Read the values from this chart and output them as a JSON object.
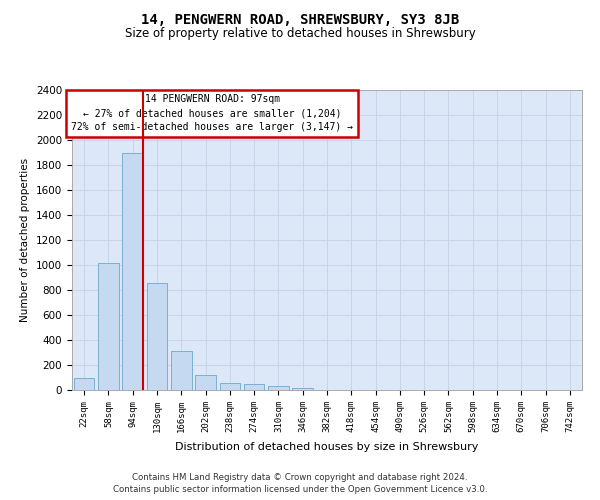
{
  "title": "14, PENGWERN ROAD, SHREWSBURY, SY3 8JB",
  "subtitle": "Size of property relative to detached houses in Shrewsbury",
  "xlabel": "Distribution of detached houses by size in Shrewsbury",
  "ylabel": "Number of detached properties",
  "footer_line1": "Contains HM Land Registry data © Crown copyright and database right 2024.",
  "footer_line2": "Contains public sector information licensed under the Open Government Licence v3.0.",
  "bar_labels": [
    "22sqm",
    "58sqm",
    "94sqm",
    "130sqm",
    "166sqm",
    "202sqm",
    "238sqm",
    "274sqm",
    "310sqm",
    "346sqm",
    "382sqm",
    "418sqm",
    "454sqm",
    "490sqm",
    "526sqm",
    "562sqm",
    "598sqm",
    "634sqm",
    "670sqm",
    "706sqm",
    "742sqm"
  ],
  "bar_values": [
    100,
    1015,
    1900,
    855,
    315,
    120,
    60,
    50,
    30,
    20,
    0,
    0,
    0,
    0,
    0,
    0,
    0,
    0,
    0,
    0,
    0
  ],
  "bar_color": "#c5d9f1",
  "bar_edge_color": "#7bafd4",
  "grid_color": "#c8d4e8",
  "bg_color": "#dce8f8",
  "vline_bar_index": 2,
  "property_sqm": 97,
  "annotation_text_line1": "14 PENGWERN ROAD: 97sqm",
  "annotation_text_line2": "← 27% of detached houses are smaller (1,204)",
  "annotation_text_line3": "72% of semi-detached houses are larger (3,147) →",
  "annotation_box_color": "#ffffff",
  "annotation_border_color": "#cc0000",
  "vline_color": "#cc0000",
  "ylim": [
    0,
    2400
  ],
  "yticks": [
    0,
    200,
    400,
    600,
    800,
    1000,
    1200,
    1400,
    1600,
    1800,
    2000,
    2200,
    2400
  ]
}
